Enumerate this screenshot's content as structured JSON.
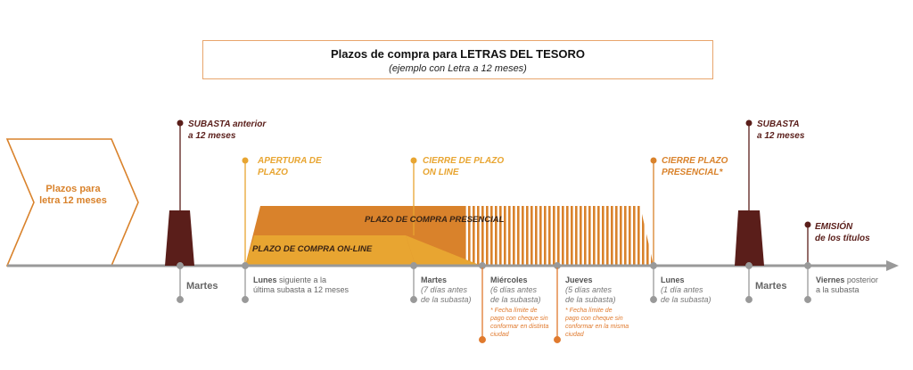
{
  "title": {
    "main": "Plazos de compra para LETRAS DEL TESORO",
    "sub": "(ejemplo con Letra a 12 meses)"
  },
  "chevron_label": "Plazos para letra 12 meses",
  "events": {
    "subasta_anterior": [
      "SUBASTA anterior",
      "a 12 meses"
    ],
    "apertura": [
      "APERTURA DE",
      "PLAZO"
    ],
    "cierre_online": [
      "CIERRE  DE PLAZO",
      "ON LINE"
    ],
    "cierre_presencial": [
      "CIERRE PLAZO",
      "PRESENCIAL*"
    ],
    "subasta": [
      "SUBASTA",
      "a 12 meses"
    ],
    "emision": [
      "EMISIÓN",
      "de los títulos"
    ]
  },
  "bars": {
    "presencial": "PLAZO DE COMPRA PRESENCIAL",
    "online": "PLAZO DE COMPRA ON-LINE"
  },
  "axis_labels": {
    "martes_1": "Martes",
    "lunes_1": {
      "bold": "Lunes",
      "rest1": " siguiente a la",
      "rest2": "última subasta a 12 meses"
    },
    "martes_2": {
      "bold": "Martes",
      "i1": "(7 días antes",
      "i2": "de la subasta)"
    },
    "miercoles": {
      "bold": "Miércoles",
      "i1": "(6 días antes",
      "i2": "de la subasta)"
    },
    "jueves": {
      "bold": "Jueves",
      "i1": "(5 días antes",
      "i2": "de la subasta)"
    },
    "lunes_2": {
      "bold": "Lunes",
      "i1": "(1 día antes",
      "i2": "de la subasta)"
    },
    "martes_3": "Martes",
    "viernes": {
      "bold": "Viernes",
      "rest1": " posterior",
      "rest2": "a la subasta"
    }
  },
  "notes": {
    "miercoles": [
      "* Fecha límite de",
      "pago con cheque sin",
      "conformar en distinta",
      "ciudad"
    ],
    "jueves": [
      "* Fecha límite de",
      "pago con cheque sin",
      "conformar en la  misma",
      "ciudad"
    ]
  },
  "colors": {
    "dark": "#5a1e1a",
    "amber": "#e8a531",
    "orange": "#d9822b",
    "gray": "#999999"
  }
}
